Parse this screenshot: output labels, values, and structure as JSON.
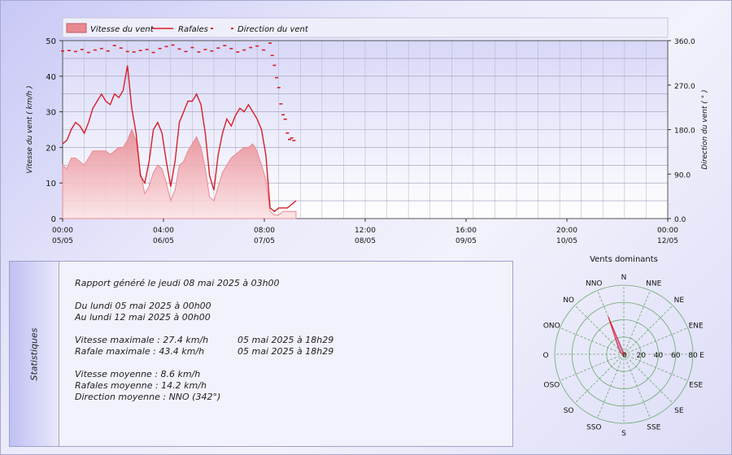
{
  "chart_data": [
    {
      "type": "line",
      "legend": [
        "Vitesse du vent",
        "Rafales",
        "Direction du vent"
      ],
      "legend_position": "top",
      "ylabel": "Vitesse du vent  ( km/h )",
      "y2label": "Direction du vent  ( ° )",
      "ylim": [
        0,
        50
      ],
      "y2lim": [
        0,
        360
      ],
      "yticks": [
        "0",
        "10",
        "20",
        "30",
        "40",
        "50"
      ],
      "y2ticks": [
        "0.0",
        "90.0",
        "180.0",
        "270.0",
        "360.0"
      ],
      "xticks": [
        {
          "time": "00:00",
          "date": "05/05"
        },
        {
          "time": "04:00",
          "date": "06/05"
        },
        {
          "time": "08:00",
          "date": "07/05"
        },
        {
          "time": "12:00",
          "date": "08/05"
        },
        {
          "time": "16:00",
          "date": "09/05"
        },
        {
          "time": "20:00",
          "date": "10/05"
        },
        {
          "time": "00:00",
          "date": "12/05"
        }
      ],
      "x_unit_hours": [
        0,
        28
      ],
      "grid": true,
      "series": [
        {
          "name": "Vitesse du vent",
          "style": "area",
          "color": "#e88a92",
          "x": [
            0,
            0.2,
            0.4,
            0.6,
            0.8,
            1,
            1.2,
            1.4,
            1.6,
            1.8,
            2,
            2.2,
            2.4,
            2.6,
            2.8,
            3,
            3.2,
            3.4,
            3.6,
            3.8,
            4,
            4.2,
            4.4,
            4.6,
            4.8,
            5,
            5.2,
            5.4,
            5.6,
            5.8,
            6,
            6.2,
            6.4,
            6.6,
            6.8,
            7,
            7.2,
            7.4,
            7.6,
            7.8,
            8,
            8.2,
            8.4,
            8.6,
            8.8,
            9,
            9.2,
            9.4,
            9.6,
            9.8,
            10,
            10.2,
            10.4,
            10.6,
            10.8
          ],
          "y": [
            15,
            14,
            17,
            17,
            16,
            15,
            17,
            19,
            19,
            19,
            19,
            18,
            19,
            20,
            20,
            22,
            25,
            22,
            13,
            7,
            9,
            13,
            15,
            14,
            10,
            5,
            8,
            15,
            16,
            19,
            21,
            23,
            20,
            14,
            6,
            5,
            9,
            13,
            15,
            17,
            18,
            19,
            20,
            20,
            21,
            19,
            15,
            11,
            2,
            1,
            1,
            2,
            2,
            2,
            2
          ]
        },
        {
          "name": "Rafales",
          "style": "line",
          "color": "#d81e28",
          "x": [
            0,
            0.2,
            0.4,
            0.6,
            0.8,
            1,
            1.2,
            1.4,
            1.6,
            1.8,
            2,
            2.2,
            2.4,
            2.6,
            2.8,
            3,
            3.2,
            3.4,
            3.6,
            3.8,
            4,
            4.2,
            4.4,
            4.6,
            4.8,
            5,
            5.2,
            5.4,
            5.6,
            5.8,
            6,
            6.2,
            6.4,
            6.6,
            6.8,
            7,
            7.2,
            7.4,
            7.6,
            7.8,
            8,
            8.2,
            8.4,
            8.6,
            8.8,
            9,
            9.2,
            9.4,
            9.6,
            9.8,
            10,
            10.2,
            10.4,
            10.6,
            10.8
          ],
          "y": [
            21,
            22,
            25,
            27,
            26,
            24,
            27,
            31,
            33,
            35,
            33,
            32,
            35,
            34,
            36,
            43,
            31,
            24,
            12,
            10,
            16,
            25,
            27,
            24,
            16,
            9,
            16,
            27,
            30,
            33,
            33,
            35,
            32,
            24,
            12,
            8,
            18,
            24,
            28,
            26,
            29,
            31,
            30,
            32,
            30,
            28,
            25,
            18,
            3,
            2,
            3,
            3,
            3,
            4,
            5
          ]
        },
        {
          "name": "Direction du vent",
          "style": "points",
          "color": "#d81e28",
          "x": [
            0,
            0.3,
            0.6,
            0.9,
            1.2,
            1.5,
            1.8,
            2.1,
            2.4,
            2.7,
            3,
            3.3,
            3.6,
            3.9,
            4.2,
            4.5,
            4.8,
            5.1,
            5.4,
            5.7,
            6,
            6.3,
            6.6,
            6.9,
            7.2,
            7.5,
            7.8,
            8.1,
            8.4,
            8.7,
            9,
            9.3,
            9.6,
            9.7,
            9.8,
            9.9,
            10,
            10.1,
            10.2,
            10.3,
            10.4,
            10.5,
            10.6,
            10.7
          ],
          "y": [
            339,
            340,
            338,
            342,
            336,
            341,
            344,
            339,
            350,
            345,
            338,
            337,
            340,
            342,
            336,
            344,
            348,
            351,
            343,
            338,
            346,
            337,
            342,
            339,
            345,
            350,
            344,
            337,
            341,
            346,
            349,
            341,
            355,
            330,
            310,
            285,
            265,
            232,
            210,
            201,
            173,
            160,
            163,
            158
          ]
        }
      ]
    },
    {
      "type": "radar",
      "title": "Vents dominants",
      "directions": [
        "N",
        "NNE",
        "NE",
        "ENE",
        "E",
        "ESE",
        "SE",
        "SSE",
        "S",
        "SSO",
        "SO",
        "OSO",
        "O",
        "ONO",
        "NO",
        "NNO"
      ],
      "rings": [
        "20",
        "40",
        "60",
        "80"
      ],
      "rmax": 80,
      "values": [
        1,
        1,
        1,
        1,
        1,
        1,
        1,
        1,
        1,
        1,
        1,
        1,
        1,
        4,
        8,
        47
      ]
    }
  ],
  "stats": {
    "title": "Statistiques",
    "generated": "Rapport généré le jeudi 08 mai 2025 à 03h00",
    "from": "Du lundi 05 mai 2025 à 00h00",
    "to": "Au lundi 12 mai 2025 à 00h00",
    "max_speed_label": "Vitesse maximale : 27.4 km/h",
    "max_speed_date": "05 mai 2025 à 18h29",
    "max_gust_label": "Rafale maximale : 43.4 km/h",
    "max_gust_date": "05 mai 2025 à 18h29",
    "avg_speed": "Vitesse moyenne : 8.6 km/h",
    "avg_gust": "Rafales moyenne : 14.2 km/h",
    "avg_dir": "Direction moyenne : NNO (342°)"
  },
  "colors": {
    "speed_fill": "#e88a92",
    "gust_line": "#d81e28",
    "plot_bg_top": "#d8d8f8",
    "plot_bg_bottom": "#ffffff",
    "rose_fill": "#b060b0",
    "rose_grid": "#6aa86a"
  }
}
